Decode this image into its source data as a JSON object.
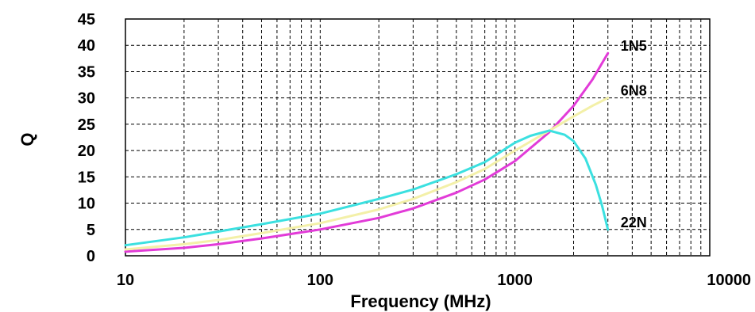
{
  "chart_data": {
    "type": "line",
    "title": "",
    "xlabel": "Frequency (MHz)",
    "ylabel": "Q",
    "x_scale": "log",
    "xlim": [
      10,
      10000
    ],
    "ylim": [
      0,
      45
    ],
    "grid": true,
    "x_ticks": [
      {
        "value": 10,
        "label": "10"
      },
      {
        "value": 100,
        "label": "100"
      },
      {
        "value": 1000,
        "label": "1000"
      },
      {
        "value": 10000,
        "label": "10000"
      }
    ],
    "y_ticks": [
      {
        "value": 0,
        "label": "0"
      },
      {
        "value": 5,
        "label": "5"
      },
      {
        "value": 10,
        "label": "10"
      },
      {
        "value": 15,
        "label": "15"
      },
      {
        "value": 20,
        "label": "20"
      },
      {
        "value": 25,
        "label": "25"
      },
      {
        "value": 30,
        "label": "30"
      },
      {
        "value": 35,
        "label": "35"
      },
      {
        "value": 40,
        "label": "40"
      },
      {
        "value": 45,
        "label": "45"
      }
    ],
    "series": [
      {
        "name": "1N5",
        "color": "#e23bd8",
        "x": [
          10,
          20,
          30,
          50,
          100,
          200,
          300,
          500,
          700,
          1000,
          1500,
          2000,
          2500,
          3000
        ],
        "y": [
          0.8,
          1.5,
          2.2,
          3.3,
          5.0,
          7.2,
          9.0,
          12.0,
          14.5,
          18.0,
          23.5,
          28.5,
          33.5,
          38.5
        ]
      },
      {
        "name": "6N8",
        "color": "#f3f0a8",
        "x": [
          10,
          20,
          30,
          50,
          100,
          200,
          300,
          500,
          700,
          1000,
          1500,
          2000,
          2500,
          3000
        ],
        "y": [
          1.2,
          2.2,
          3.0,
          4.3,
          6.2,
          8.8,
          10.8,
          14.0,
          16.5,
          20.0,
          23.8,
          26.5,
          28.5,
          30.0
        ]
      },
      {
        "name": "22N",
        "color": "#3be0e0",
        "x": [
          10,
          20,
          30,
          50,
          100,
          200,
          300,
          500,
          700,
          1000,
          1200,
          1500,
          1800,
          2000,
          2300,
          2600,
          2800,
          3000
        ],
        "y": [
          2.0,
          3.5,
          4.6,
          6.0,
          8.0,
          10.8,
          12.6,
          15.5,
          17.8,
          21.5,
          22.8,
          23.8,
          23.0,
          21.8,
          18.5,
          13.5,
          9.5,
          5.0
        ]
      }
    ]
  }
}
